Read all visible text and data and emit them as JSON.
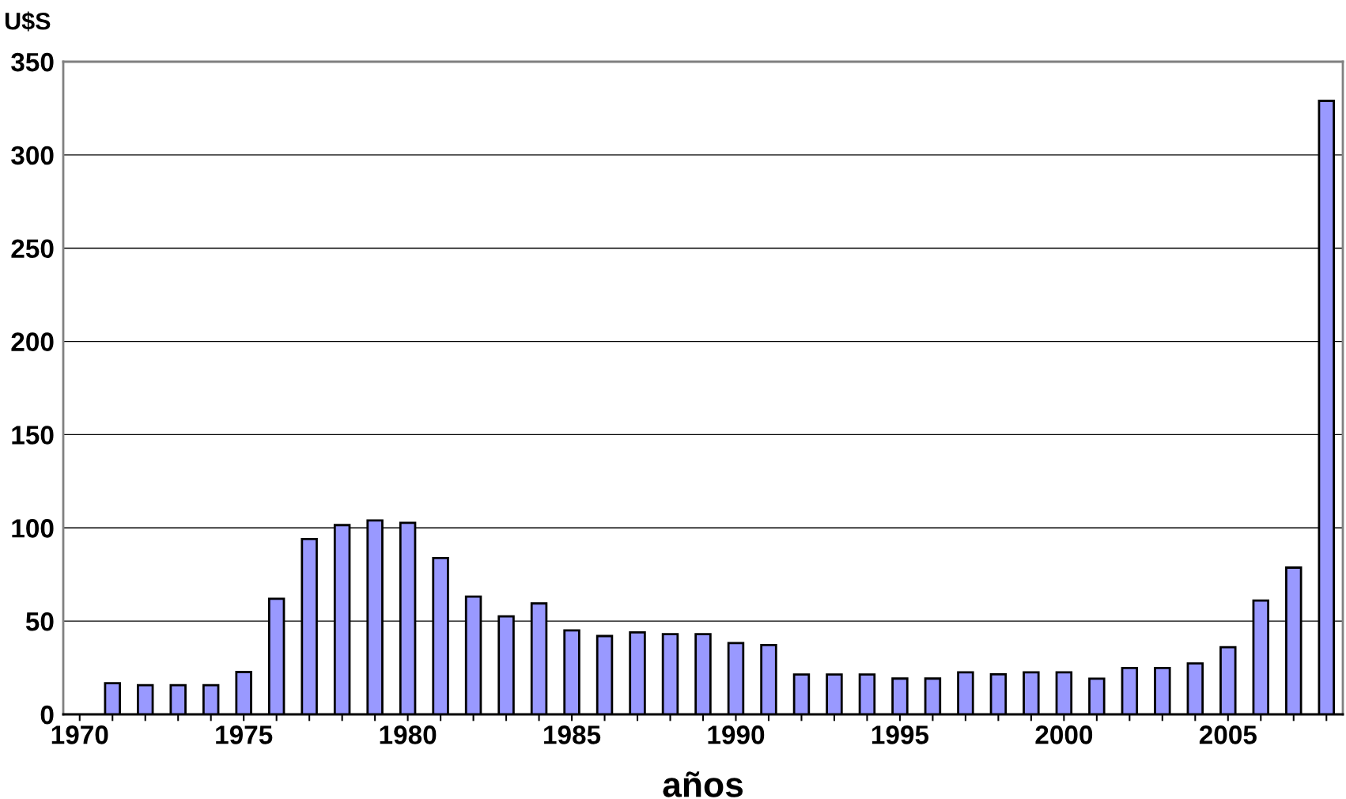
{
  "chart_data": {
    "type": "bar",
    "ylabel": "U$S",
    "xlabel": "años",
    "categories": [
      "1970",
      null,
      null,
      null,
      null,
      "1975",
      null,
      null,
      null,
      null,
      "1980",
      null,
      null,
      null,
      null,
      "1985",
      null,
      null,
      null,
      null,
      "1990",
      null,
      null,
      null,
      null,
      "1995",
      null,
      null,
      null,
      null,
      "2000",
      null,
      null,
      null,
      null,
      "2005",
      null,
      null,
      null
    ],
    "values": [
      null,
      16.7,
      15.6,
      15.6,
      15.6,
      22.7,
      62,
      94,
      101.5,
      104,
      102.7,
      83.8,
      63.2,
      52.6,
      59.5,
      45,
      42,
      44,
      43,
      43,
      38.2,
      37.2,
      21.4,
      21.4,
      21.4,
      19.2,
      19.2,
      22.5,
      21.5,
      22.5,
      22.5,
      19.1,
      24.9,
      24.9,
      27.3,
      36,
      61,
      78.7,
      329
    ],
    "color": "#9999ff",
    "ylim": [
      0,
      350
    ],
    "yticks": [
      0,
      50,
      100,
      150,
      200,
      250,
      300,
      350
    ],
    "grid": "y",
    "legend": false
  }
}
